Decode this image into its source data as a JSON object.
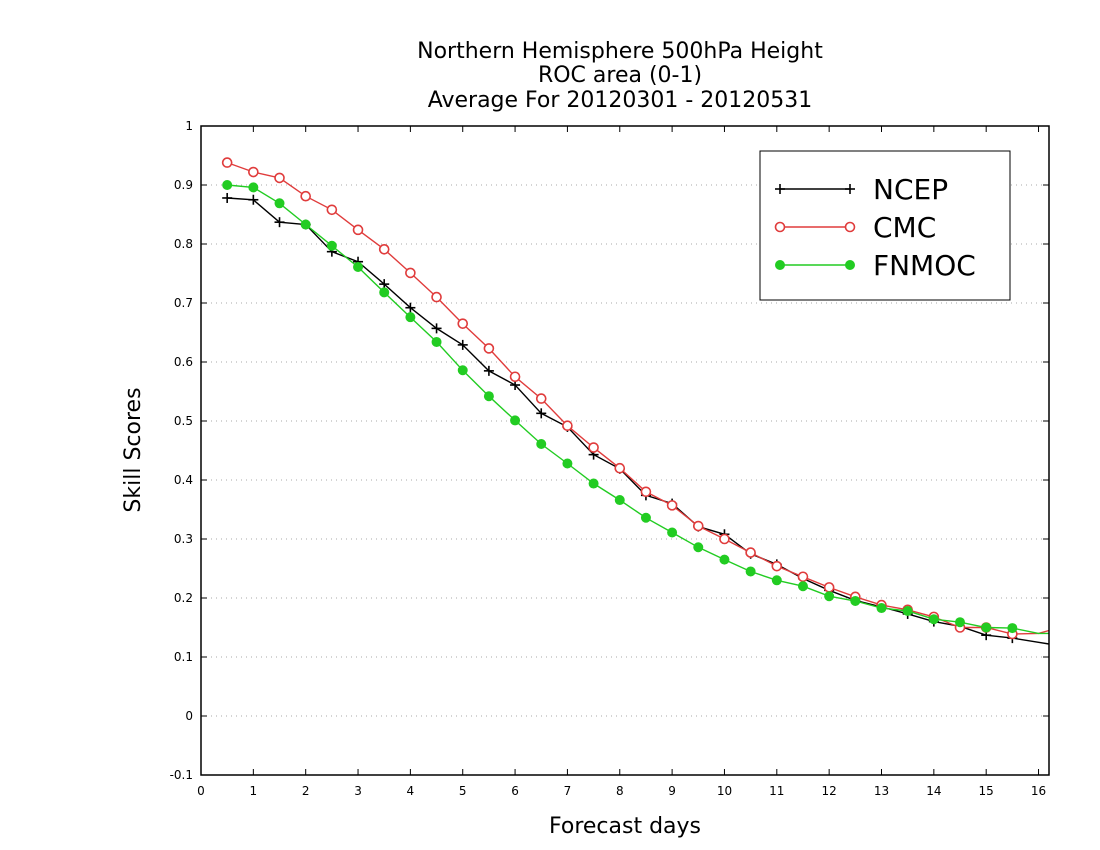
{
  "chart_data": {
    "type": "line",
    "title": [
      "Northern Hemisphere 500hPa Height",
      "ROC area (0-1)",
      "Average For 20120301 - 20120531"
    ],
    "xlabel": "Forecast days",
    "ylabel": "Skill Scores",
    "xlim": [
      0,
      16.2
    ],
    "ylim": [
      -0.1,
      1
    ],
    "xticks": [
      0,
      1,
      2,
      3,
      4,
      5,
      6,
      7,
      8,
      9,
      10,
      11,
      12,
      13,
      14,
      15,
      16
    ],
    "yticks": [
      -0.1,
      0,
      0.1,
      0.2,
      0.3,
      0.4,
      0.5,
      0.6,
      0.7,
      0.8,
      0.9,
      1
    ],
    "ytick_labels": [
      "-0.1",
      "0",
      "0.1",
      "0.2",
      "0.3",
      "0.4",
      "0.5",
      "0.6",
      "0.7",
      "0.8",
      "0.9",
      "1"
    ],
    "grid": "horizontal dotted",
    "legend_position": "top-right",
    "x": [
      0.5,
      1,
      1.5,
      2,
      2.5,
      3,
      3.5,
      4,
      4.5,
      5,
      5.5,
      6,
      6.5,
      7,
      7.5,
      8,
      8.5,
      9,
      9.5,
      10,
      10.5,
      11,
      11.5,
      12,
      12.5,
      13,
      13.5,
      14,
      14.5,
      15,
      15.5,
      16,
      16.2
    ],
    "series": [
      {
        "name": "NCEP",
        "color": "#000000",
        "marker": "plus",
        "values": [
          0.878,
          0.875,
          0.837,
          0.833,
          0.787,
          0.77,
          0.732,
          0.692,
          0.657,
          0.629,
          0.585,
          0.561,
          0.513,
          0.49,
          0.443,
          0.419,
          0.374,
          0.36,
          0.321,
          0.308,
          0.275,
          0.257,
          0.233,
          0.213,
          0.196,
          0.185,
          0.173,
          0.16,
          0.152,
          0.137,
          0.132,
          0.125,
          0.122
        ]
      },
      {
        "name": "CMC",
        "color": "#e03c3c",
        "marker": "open-circle",
        "values": [
          0.938,
          0.922,
          0.912,
          0.881,
          0.858,
          0.824,
          0.791,
          0.751,
          0.71,
          0.665,
          0.623,
          0.575,
          0.538,
          0.492,
          0.455,
          0.42,
          0.38,
          0.357,
          0.322,
          0.3,
          0.277,
          0.254,
          0.236,
          0.218,
          0.202,
          0.188,
          0.18,
          0.168,
          0.15,
          0.15,
          0.139,
          0.14,
          0.145
        ]
      },
      {
        "name": "FNMOC",
        "color": "#22cc22",
        "marker": "filled-circle",
        "values": [
          0.9,
          0.896,
          0.869,
          0.833,
          0.797,
          0.761,
          0.718,
          0.676,
          0.634,
          0.586,
          0.542,
          0.501,
          0.461,
          0.428,
          0.394,
          0.366,
          0.336,
          0.311,
          0.286,
          0.265,
          0.245,
          0.23,
          0.22,
          0.203,
          0.195,
          0.183,
          0.178,
          0.164,
          0.159,
          0.15,
          0.149,
          0.14,
          0.14
        ]
      }
    ]
  }
}
